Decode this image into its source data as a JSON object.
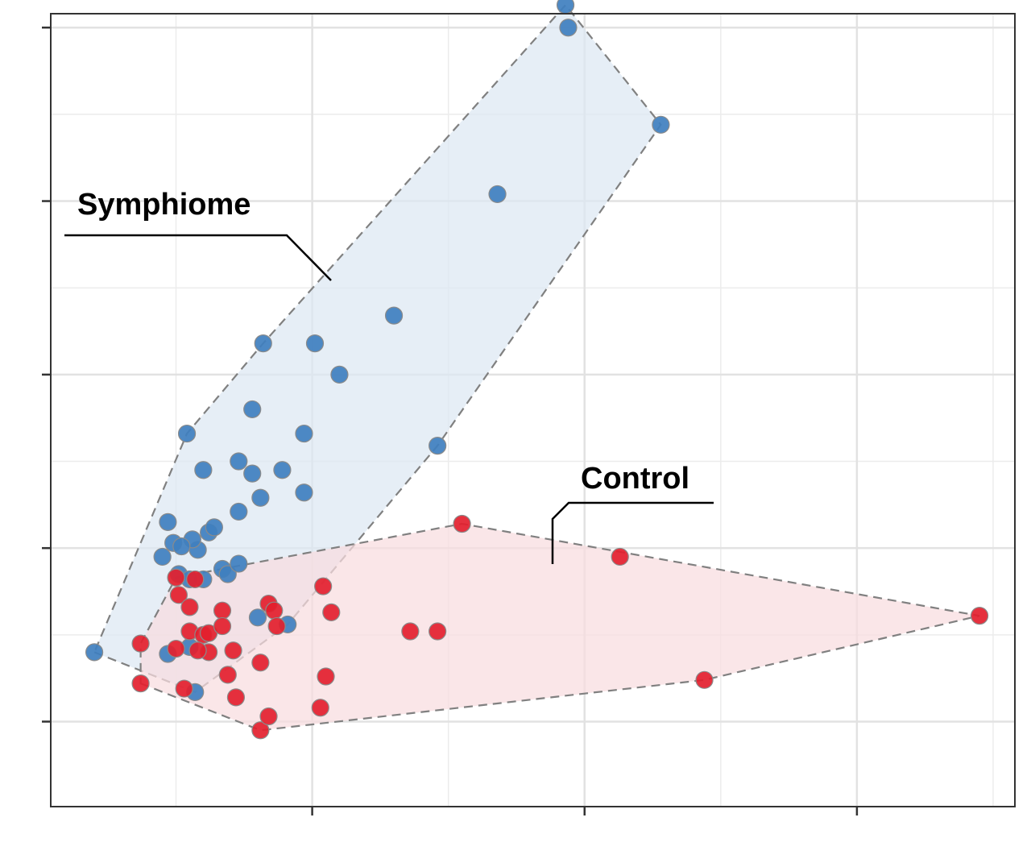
{
  "chart_data": {
    "type": "scatter",
    "title": "",
    "xlabel": "",
    "ylabel": "",
    "xlim": [
      -0.96,
      2.58
    ],
    "ylim": [
      -0.49,
      4.08
    ],
    "x_major_ticks": [
      0,
      1,
      2
    ],
    "x_minor_gridlines": [
      -0.5,
      0.5,
      1.5,
      2.5
    ],
    "y_major_ticks": [
      0,
      1,
      2,
      3,
      4
    ],
    "y_minor_gridlines": [
      0.5,
      1.5,
      2.5,
      3.5
    ],
    "grid": true,
    "legend": "none",
    "series": [
      {
        "name": "Symphiome",
        "color": "#3f7fbf",
        "hull_fill": "#dce8f3",
        "points": [
          [
            -0.8,
            0.4
          ],
          [
            -0.53,
            0.39
          ],
          [
            -0.43,
            0.17
          ],
          [
            -0.45,
            0.43
          ],
          [
            -0.49,
            0.85
          ],
          [
            -0.42,
            0.99
          ],
          [
            -0.44,
            1.05
          ],
          [
            -0.38,
            1.09
          ],
          [
            -0.33,
            0.88
          ],
          [
            -0.27,
            1.21
          ],
          [
            -0.2,
            0.6
          ],
          [
            -0.09,
            0.56
          ],
          [
            -0.51,
            1.03
          ],
          [
            -0.55,
            0.95
          ],
          [
            -0.48,
            1.01
          ],
          [
            -0.53,
            1.15
          ],
          [
            -0.36,
            1.12
          ],
          [
            -0.31,
            0.85
          ],
          [
            -0.4,
            0.82
          ],
          [
            -0.45,
            0.82
          ],
          [
            -0.27,
            0.91
          ],
          [
            -0.4,
            1.45
          ],
          [
            -0.46,
            1.66
          ],
          [
            -0.27,
            1.5
          ],
          [
            -0.22,
            1.43
          ],
          [
            -0.11,
            1.45
          ],
          [
            -0.19,
            1.29
          ],
          [
            -0.03,
            1.32
          ],
          [
            -0.22,
            1.8
          ],
          [
            -0.03,
            1.66
          ],
          [
            -0.18,
            2.18
          ],
          [
            0.01,
            2.18
          ],
          [
            0.1,
            2.0
          ],
          [
            0.3,
            2.34
          ],
          [
            0.46,
            1.59
          ],
          [
            0.68,
            3.04
          ],
          [
            0.93,
            4.13
          ],
          [
            0.94,
            4.0
          ],
          [
            1.28,
            3.44
          ]
        ]
      },
      {
        "name": "Control",
        "color": "#e3202e",
        "hull_fill": "#f8dcdf",
        "points": [
          [
            -0.63,
            0.45
          ],
          [
            -0.63,
            0.22
          ],
          [
            -0.5,
            0.42
          ],
          [
            -0.49,
            0.73
          ],
          [
            -0.5,
            0.83
          ],
          [
            -0.45,
            0.66
          ],
          [
            -0.43,
            0.82
          ],
          [
            -0.45,
            0.52
          ],
          [
            -0.4,
            0.5
          ],
          [
            -0.38,
            0.51
          ],
          [
            -0.38,
            0.4
          ],
          [
            -0.33,
            0.64
          ],
          [
            -0.33,
            0.55
          ],
          [
            -0.31,
            0.27
          ],
          [
            -0.29,
            0.41
          ],
          [
            -0.28,
            0.14
          ],
          [
            -0.19,
            0.34
          ],
          [
            -0.19,
            -0.05
          ],
          [
            -0.16,
            0.03
          ],
          [
            -0.16,
            0.68
          ],
          [
            -0.14,
            0.64
          ],
          [
            -0.13,
            0.55
          ],
          [
            -0.47,
            0.19
          ],
          [
            -0.42,
            0.41
          ],
          [
            0.03,
            0.08
          ],
          [
            0.05,
            0.26
          ],
          [
            0.07,
            0.63
          ],
          [
            0.04,
            0.78
          ],
          [
            0.36,
            0.52
          ],
          [
            0.46,
            0.52
          ],
          [
            0.55,
            1.14
          ],
          [
            1.13,
            0.95
          ],
          [
            1.44,
            0.24
          ],
          [
            2.45,
            0.61
          ]
        ]
      }
    ],
    "annotations": [
      {
        "text": "Symphiome",
        "series": "Symphiome"
      },
      {
        "text": "Control",
        "series": "Control"
      }
    ]
  }
}
